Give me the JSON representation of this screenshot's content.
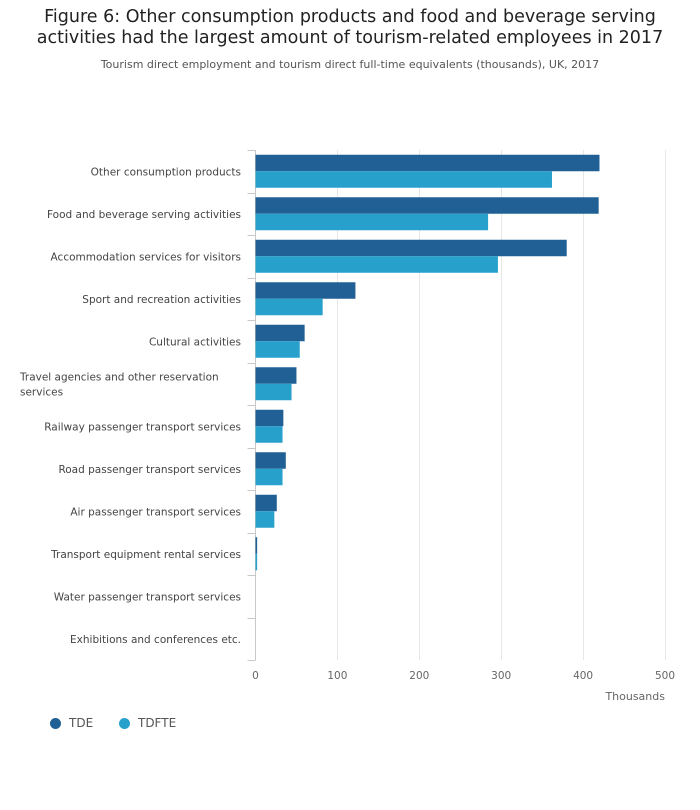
{
  "title_lines": [
    "Figure 6: Other consumption products and food and beverage serving",
    "activities had the largest amount of tourism-related employees in 2017"
  ],
  "subtitle": "Tourism direct employment and tourism direct full-time equivalents (thousands), UK, 2017",
  "colors": {
    "TDE": "#206095",
    "TDFTE": "#27a0cc"
  },
  "chart_data": {
    "type": "bar",
    "orientation": "horizontal",
    "categories": [
      "Other consumption products",
      "Food and beverage serving activities",
      "Accommodation services for visitors",
      "Sport and recreation activities",
      "Cultural activities",
      "Travel agencies and other reservation services",
      "Railway passenger transport services",
      "Road passenger transport services",
      "Air passenger transport services",
      "Transport equipment rental services",
      "Water passenger transport services",
      "Exhibitions and conferences etc."
    ],
    "category_label_lines": [
      [
        "Other consumption products"
      ],
      [
        "Food and beverage serving activities"
      ],
      [
        "Accommodation services for visitors"
      ],
      [
        "Sport and recreation activities"
      ],
      [
        "Cultural activities"
      ],
      [
        "Travel agencies and other reservation",
        "services"
      ],
      [
        "Railway passenger transport services"
      ],
      [
        "Road passenger transport services"
      ],
      [
        "Air passenger transport services"
      ],
      [
        "Transport equipment rental services"
      ],
      [
        "Water passenger transport services"
      ],
      [
        "Exhibitions and conferences etc."
      ]
    ],
    "series": [
      {
        "name": "TDE",
        "values": [
          420,
          419,
          380,
          122,
          60,
          50,
          34,
          37,
          26,
          2,
          0,
          0
        ]
      },
      {
        "name": "TDFTE",
        "values": [
          362,
          284,
          296,
          82,
          54,
          44,
          33,
          33,
          23,
          2,
          0,
          0
        ]
      }
    ],
    "xlabel": "Thousands",
    "xlim": [
      0,
      500
    ],
    "xticks": [
      0,
      100,
      200,
      300,
      400,
      500
    ],
    "grid": true,
    "legend_position": "bottom-left"
  }
}
